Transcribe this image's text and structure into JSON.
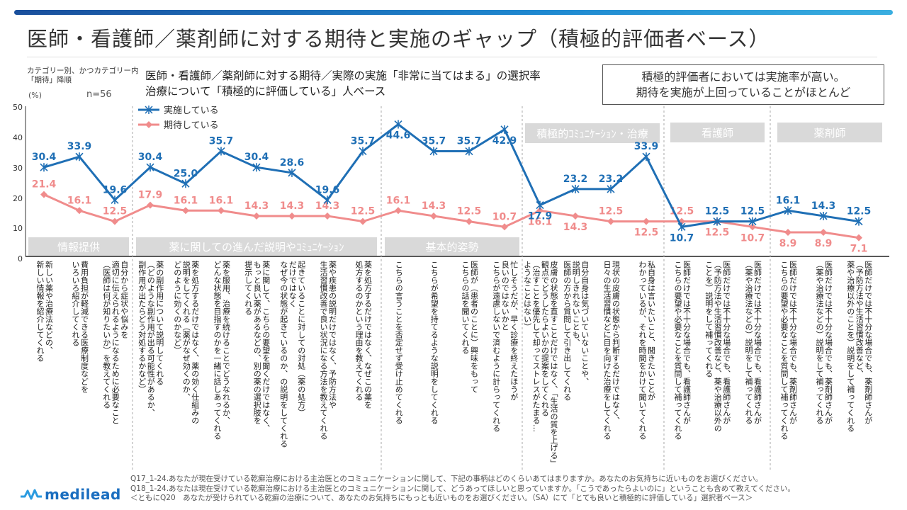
{
  "title": "医師・看護師／薬剤師に対する期待と実施のギャップ（積極的評価者ベース）",
  "sort_note": "カテゴリー別、かつカテゴリー内\n「期待」降順",
  "unit": "(%)",
  "n": "n=56",
  "subtitle": "医師・看護師／薬剤師に対する期待／実際の実施「非常に当てはまる」の選択率\n治療について「積極的に評価している」人ベース",
  "callout": "積極的評価者においては実施率が高い。\n期待を実施が上回っていることがほとんど",
  "colors": {
    "implemented": "#1f6fb5",
    "expected": "#f08c8c",
    "group_box": "#d9d9d9",
    "brand": "#1a6ec0"
  },
  "groups": [
    {
      "label": "情報提供"
    },
    {
      "label": "薬に関しての進んだ説明やｺﾐｭﾆｹｰｼｮﾝ"
    },
    {
      "label": "基本的姿勢"
    },
    {
      "label": "積極的ｺﾐｭﾆｹｰｼｮﾝ・治療"
    },
    {
      "label": "看護師"
    },
    {
      "label": "薬剤師"
    }
  ],
  "chart_data": {
    "type": "line",
    "ylim": [
      0,
      50
    ],
    "yticks": [
      "0",
      "10",
      "20",
      "30",
      "40",
      "50"
    ],
    "grid": false,
    "legend": "top-left",
    "categories": [
      "新しい薬や治療法などの、\n新しい情報を紹介してくれる",
      "費用負担が軽減できる医療制度などを\nいろいろ紹介してくれる",
      "自分から症状や悩みを\n適切に伝えられるようになるために必要なこと\n（医師は何が知りたいか）を教えてくれる",
      "薬の副作用について説明してくれる\n（どのような副作用が出る可能性があるか、\n副作用が出たらどう対処するかなど）",
      "薬を処方するだけではなく、薬の効く仕組みの\n説明をしてくれる（薬がなぜ効くのか、\nどのように効くのかなど）",
      "薬を服用、治療を続けることでどうなれるか、\nどんな状態を目指すのかを一緒に話しあってくれる",
      "薬に関して、こちらの要望を聞くだけではなく、\nもっと良い薬があるなどの、別の薬の選択肢を\n提示してくれる",
      "起きていることに対しての対処（薬の処方）\nだけではなく\nなぜ今の状態が起きているのか、の説明をしてくれる",
      "薬や疾患の説明だけではなく、予防方法や\n生活習慣改善で良い状況になる方法を教えてくれる",
      "薬を処方するだけではなく、なぜこの薬を\n処方するのかという理由を教えてくれる",
      "こちらの言うことを否定せず受け止めてくれる",
      "こちらが希望を持てるような説明をしてくれる",
      "医師が（患者のことに）興味をもって\nこちらの話を聞いてくれる",
      "忙しそうだが、早く診療を終えたほうが\n良いのではないかと\nこちらが遠慮しないで済むように計らってくれる",
      "皮膚の状態を直すことだけではなく、「生活の質を上げる」\n観点でどうしたらよいかの提案をしてくれる\n（治すことを優先して却ってストレスがたまる…\nようなことはない）",
      "自分自身は気づいていないことや、\n説明しきれないことも、\n医師の方から質問して引き出してくれる",
      "現状の皮膚の状態から判断するだけではなく、\n日々の生活習慣などに目を向けた治療をしてくれる",
      "私自身は言いたいこと、聞きたいことが\nわかっているが、それを時間をかけて聞いてくれる",
      "医師だけでは不十分な場合でも、看護師さんが\nこちらの要望や必要なことを質問して補ってくれる",
      "医師だけでは不十分な場合でも、看護師さんが\n（予防方法や生活習慣改善など、薬や治療以外の\nことを）説明をして補ってくれる",
      "医師だけでは不十分な場合でも、看護師さんが\n（薬や治療法などの）説明をして補ってくれる",
      "医師だけでは不十分な場合でも、薬剤師さんが\nこちらの要望や必要なことを質問して補ってくれる",
      "医師だけでは不十分な場合でも、薬剤師さんが\n（薬や治療法などの）説明をして補ってくれる",
      "医師だけでは不十分な場合でも、薬剤師さんが\n（予防方法や生活習慣改善など、\n薬や治療以外のことを）説明をして補ってくれる"
    ],
    "series": [
      {
        "name": "実施している",
        "marker": "asterisk",
        "values": [
          30.4,
          33.9,
          19.6,
          30.4,
          25.0,
          35.7,
          30.4,
          28.6,
          19.6,
          35.7,
          44.6,
          35.7,
          35.7,
          42.9,
          17.9,
          23.2,
          23.2,
          33.9,
          10.7,
          12.5,
          12.5,
          16.1,
          14.3,
          12.5
        ]
      },
      {
        "name": "期待している",
        "marker": "diamond",
        "values": [
          21.4,
          16.1,
          12.5,
          17.9,
          16.1,
          16.1,
          14.3,
          14.3,
          14.3,
          12.5,
          16.1,
          14.3,
          12.5,
          10.7,
          16.1,
          14.3,
          12.5,
          12.5,
          12.5,
          12.5,
          10.7,
          8.9,
          8.9,
          7.1
        ]
      }
    ]
  },
  "footer": "Q17_1-24.あなたが現在受けている乾癬治療における主治医とのコミュニケーションに関して、下記の事柄はどのくらいあてはまりますか。あなたのお気持ちに近いものをお選びください。\nQ18_1-24.あなたは現在受けている乾癬治療における主治医とのコミュニケーションに関して、どうあってほしいと思っていますか。「こうであったらよいのに」ということも含めて教えてください。\n＜ともにQ20　あなたが受けられている乾癬の治療について、あなたのお気持ちにもっとも近いものをお選びください。（SA）にて「とても良いと積極的に評価している」選択者ベース＞",
  "logo": "medilead"
}
